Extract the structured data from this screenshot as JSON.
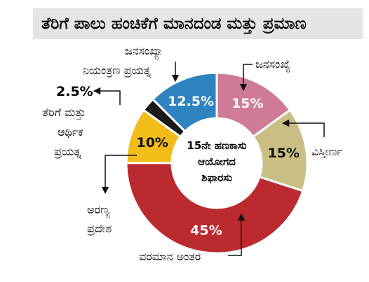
{
  "chart_data": {
    "type": "pie",
    "title": "ತೆರಿಗೆ ಪಾಲು ಹಂಚಿಕೆಗೆ ಮಾನದಂಡ ಮತ್ತು ಪ್ರಮಾಣ",
    "center_label": [
      "15ನೇ ಹಣಕಾಸು",
      "ಆಯೋಗದ",
      "ಶಿಫಾರಸು"
    ],
    "donut": true,
    "categories": [
      "ಜನಸಂಖ್ಯೆ",
      "ವಿಸ್ತೀರ್ಣ",
      "ವರಮಾನ ಅಂತರ",
      "ಅರಣ್ಯ ಪ್ರದೇಶ",
      "ತೆರಿಗೆ ಮತ್ತು ಆರ್ಥಿಕ ಪ್ರಯತ್ನ",
      "ಜನಸಂಖ್ಯಾ ನಿಯಂತ್ರಣ ಪ್ರಯತ್ನ"
    ],
    "values": [
      15,
      15,
      45,
      10,
      2.5,
      12.5
    ],
    "value_labels": [
      "15%",
      "15%",
      "45%",
      "10%",
      "2.5%",
      "12.5%"
    ],
    "colors": [
      "#cf7b96",
      "#c9bf85",
      "#bb2a2f",
      "#f2bd18",
      "#1a1a1a",
      "#2e83c0"
    ]
  }
}
